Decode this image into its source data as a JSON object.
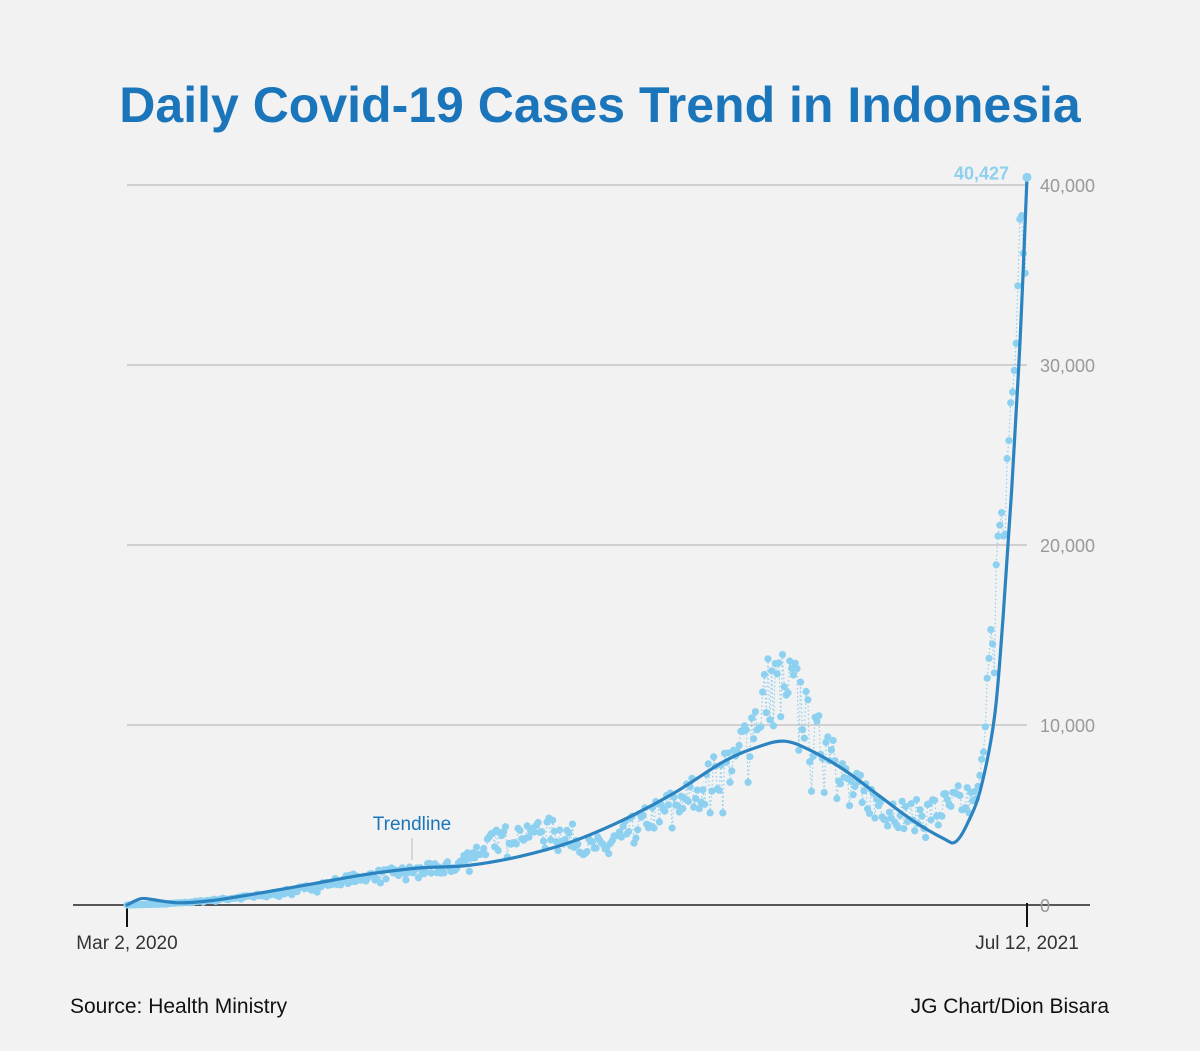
{
  "title": "Daily Covid-19 Cases Trend in Indonesia",
  "source": "Source: Health Ministry",
  "credit": "JG Chart/Dion Bisara",
  "colors": {
    "title": "#1b75bb",
    "points": "#8dd0ef",
    "trend": "#2b83c0",
    "grid": "#c4c4c4",
    "tick_text": "#999999"
  },
  "chart_data": {
    "type": "scatter",
    "title": "Daily Covid-19 Cases Trend in Indonesia",
    "xlabel": "",
    "ylabel": "",
    "x_start": "Mar 2, 2020",
    "x_end": "Jul 12, 2021",
    "x_tick_labels": [
      "Mar 2, 2020",
      "Jul 12, 2021"
    ],
    "y_ticks": [
      0,
      10000,
      20000,
      30000,
      40000
    ],
    "y_tick_labels": [
      "0",
      "10,000",
      "20,000",
      "30,000",
      "40,000"
    ],
    "ylim": [
      0,
      40000
    ],
    "y_axis_position": "right",
    "grid": true,
    "annotations": {
      "trendline_label": "Trendline",
      "peak_label": "40,427",
      "peak_value": 40427
    },
    "series": [
      {
        "kind": "daily",
        "values_by_month": [
          {
            "month": "Mar 2020",
            "approx_daily": [
              0,
              100
            ]
          },
          {
            "month": "Apr 2020",
            "approx_daily": [
              100,
              400
            ]
          },
          {
            "month": "May 2020",
            "approx_daily": [
              300,
              950
            ]
          },
          {
            "month": "Jun 2020",
            "approx_daily": [
              600,
              1300
            ]
          },
          {
            "month": "Jul 2020",
            "approx_daily": [
              1200,
              2650
            ]
          },
          {
            "month": "Aug 2020",
            "approx_daily": [
              1500,
              2500
            ]
          },
          {
            "month": "Sep 2020",
            "approx_daily": [
              2500,
              4300
            ]
          },
          {
            "month": "Oct 2020",
            "approx_daily": [
              3500,
              4800
            ]
          },
          {
            "month": "Nov 2020",
            "approx_daily": [
              2600,
              5500
            ]
          },
          {
            "month": "Dec 2020",
            "approx_daily": [
              4000,
              8350
            ]
          },
          {
            "month": "Jan 2021",
            "approx_daily": [
              7000,
              14500
            ]
          },
          {
            "month": "Feb 2021",
            "approx_daily": [
              6500,
              12000
            ]
          },
          {
            "month": "Mar 2021",
            "approx_daily": [
              3700,
              7000
            ]
          },
          {
            "month": "Apr 2021",
            "approx_daily": [
              3800,
              6200
            ]
          },
          {
            "month": "May 2021",
            "approx_daily": [
              2300,
              6500
            ]
          },
          {
            "month": "Jun 2021",
            "approx_daily": [
              5000,
              21800
            ]
          },
          {
            "month": "Jul 2021",
            "approx_daily": [
              25000,
              40427
            ]
          }
        ]
      },
      {
        "kind": "trend",
        "points": [
          {
            "x": "Mar 2020",
            "y": 0
          },
          {
            "x": "Apr 2020",
            "y": 100
          },
          {
            "x": "May 2020",
            "y": 400
          },
          {
            "x": "Jun 2020",
            "y": 900
          },
          {
            "x": "Jul 2020",
            "y": 1600
          },
          {
            "x": "Aug 2020",
            "y": 2150
          },
          {
            "x": "Sep 2020",
            "y": 2450
          },
          {
            "x": "Oct 2020",
            "y": 3000
          },
          {
            "x": "Nov 2020",
            "y": 4100
          },
          {
            "x": "Dec 2020",
            "y": 5900
          },
          {
            "x": "Jan 2021",
            "y": 8300
          },
          {
            "x": "Feb 2021",
            "y": 9050
          },
          {
            "x": "Mar 2021",
            "y": 7900
          },
          {
            "x": "Apr 2021",
            "y": 5950
          },
          {
            "x": "May 2021",
            "y": 3800
          },
          {
            "x": "Jun 2021",
            "y": 7500
          },
          {
            "x": "Jul 2021",
            "y": 40427
          }
        ]
      }
    ]
  }
}
